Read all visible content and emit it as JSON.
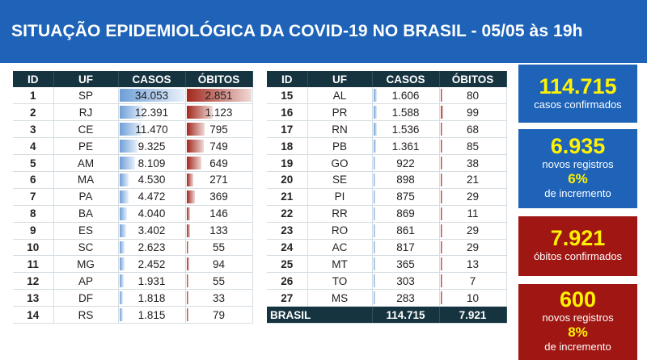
{
  "title": "SITUAÇÃO EPIDEMIOLÓGICA DA COVID-19 NO BRASIL - 05/05 às 19h",
  "columns": [
    "ID",
    "UF",
    "CASOS",
    "ÓBITOS"
  ],
  "rows_left": [
    {
      "id": "1",
      "uf": "SP",
      "casos": "34.053",
      "obitos": "2.851",
      "casos_val": 34053,
      "obitos_val": 2851
    },
    {
      "id": "2",
      "uf": "RJ",
      "casos": "12.391",
      "obitos": "1.123",
      "casos_val": 12391,
      "obitos_val": 1123
    },
    {
      "id": "3",
      "uf": "CE",
      "casos": "11.470",
      "obitos": "795",
      "casos_val": 11470,
      "obitos_val": 795
    },
    {
      "id": "4",
      "uf": "PE",
      "casos": "9.325",
      "obitos": "749",
      "casos_val": 9325,
      "obitos_val": 749
    },
    {
      "id": "5",
      "uf": "AM",
      "casos": "8.109",
      "obitos": "649",
      "casos_val": 8109,
      "obitos_val": 649
    },
    {
      "id": "6",
      "uf": "MA",
      "casos": "4.530",
      "obitos": "271",
      "casos_val": 4530,
      "obitos_val": 271
    },
    {
      "id": "7",
      "uf": "PA",
      "casos": "4.472",
      "obitos": "369",
      "casos_val": 4472,
      "obitos_val": 369
    },
    {
      "id": "8",
      "uf": "BA",
      "casos": "4.040",
      "obitos": "146",
      "casos_val": 4040,
      "obitos_val": 146
    },
    {
      "id": "9",
      "uf": "ES",
      "casos": "3.402",
      "obitos": "133",
      "casos_val": 3402,
      "obitos_val": 133
    },
    {
      "id": "10",
      "uf": "SC",
      "casos": "2.623",
      "obitos": "55",
      "casos_val": 2623,
      "obitos_val": 55
    },
    {
      "id": "11",
      "uf": "MG",
      "casos": "2.452",
      "obitos": "94",
      "casos_val": 2452,
      "obitos_val": 94
    },
    {
      "id": "12",
      "uf": "AP",
      "casos": "1.931",
      "obitos": "55",
      "casos_val": 1931,
      "obitos_val": 55
    },
    {
      "id": "13",
      "uf": "DF",
      "casos": "1.818",
      "obitos": "33",
      "casos_val": 1818,
      "obitos_val": 33
    },
    {
      "id": "14",
      "uf": "RS",
      "casos": "1.815",
      "obitos": "79",
      "casos_val": 1815,
      "obitos_val": 79
    }
  ],
  "rows_right": [
    {
      "id": "15",
      "uf": "AL",
      "casos": "1.606",
      "obitos": "80",
      "casos_val": 1606,
      "obitos_val": 80
    },
    {
      "id": "16",
      "uf": "PR",
      "casos": "1.588",
      "obitos": "99",
      "casos_val": 1588,
      "obitos_val": 99
    },
    {
      "id": "17",
      "uf": "RN",
      "casos": "1.536",
      "obitos": "68",
      "casos_val": 1536,
      "obitos_val": 68
    },
    {
      "id": "18",
      "uf": "PB",
      "casos": "1.361",
      "obitos": "85",
      "casos_val": 1361,
      "obitos_val": 85
    },
    {
      "id": "19",
      "uf": "GO",
      "casos": "922",
      "obitos": "38",
      "casos_val": 922,
      "obitos_val": 38
    },
    {
      "id": "20",
      "uf": "SE",
      "casos": "898",
      "obitos": "21",
      "casos_val": 898,
      "obitos_val": 21
    },
    {
      "id": "21",
      "uf": "PI",
      "casos": "875",
      "obitos": "29",
      "casos_val": 875,
      "obitos_val": 29
    },
    {
      "id": "22",
      "uf": "RR",
      "casos": "869",
      "obitos": "11",
      "casos_val": 869,
      "obitos_val": 11
    },
    {
      "id": "23",
      "uf": "RO",
      "casos": "861",
      "obitos": "29",
      "casos_val": 861,
      "obitos_val": 29
    },
    {
      "id": "24",
      "uf": "AC",
      "casos": "817",
      "obitos": "29",
      "casos_val": 817,
      "obitos_val": 29
    },
    {
      "id": "25",
      "uf": "MT",
      "casos": "365",
      "obitos": "13",
      "casos_val": 365,
      "obitos_val": 13
    },
    {
      "id": "26",
      "uf": "TO",
      "casos": "303",
      "obitos": "7",
      "casos_val": 303,
      "obitos_val": 7
    },
    {
      "id": "27",
      "uf": "MS",
      "casos": "283",
      "obitos": "10",
      "casos_val": 283,
      "obitos_val": 10
    }
  ],
  "total": {
    "label": "BRASIL",
    "casos": "114.715",
    "obitos": "7.921"
  },
  "max_casos": 34053,
  "max_obitos": 2851,
  "summary": {
    "cases_total": "114.715",
    "cases_total_label": "casos confirmados",
    "cases_new": "6.935",
    "cases_new_label": "novos registros",
    "cases_pct": "6%",
    "cases_pct_label": "de incremento",
    "deaths_total": "7.921",
    "deaths_total_label": "óbitos confirmados",
    "deaths_new": "600",
    "deaths_new_label": "novos registros",
    "deaths_pct": "8%",
    "deaths_pct_label": "de incremento"
  },
  "colors": {
    "header_blue": "#1e63b8",
    "table_header": "#163340",
    "deaths_red": "#a01613",
    "highlight_yellow": "#fff200"
  }
}
